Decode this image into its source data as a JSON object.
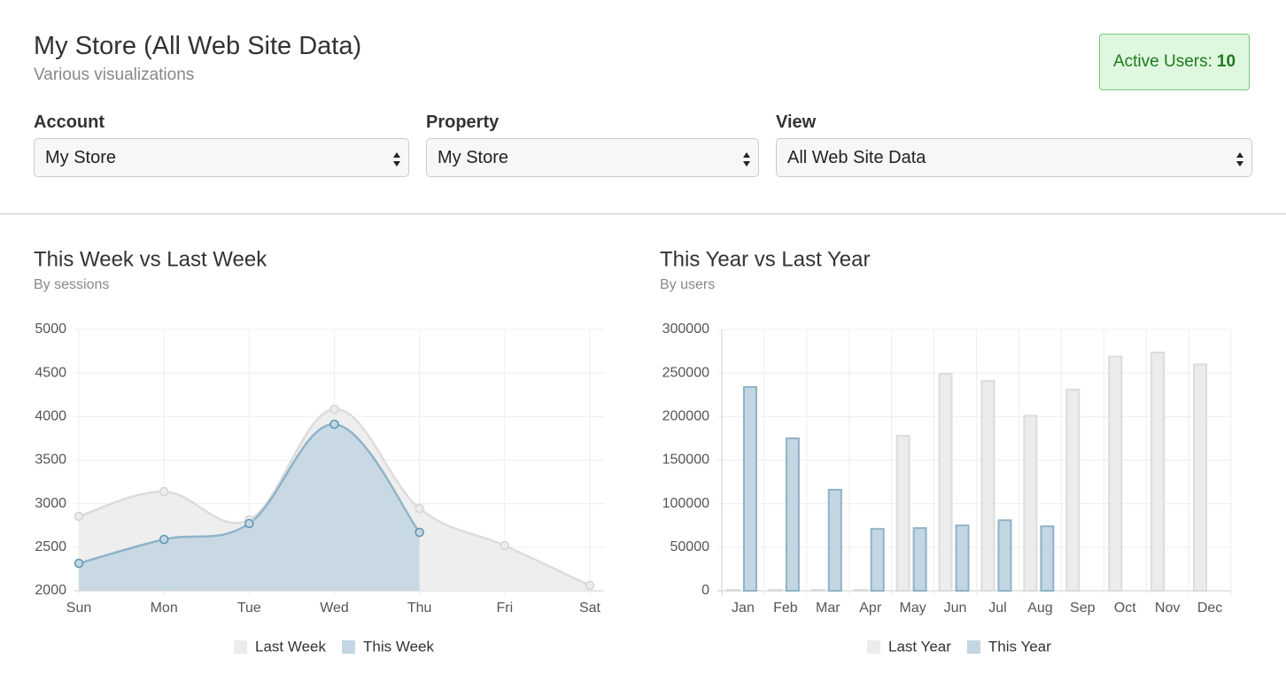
{
  "header": {
    "title": "My Store (All Web Site Data)",
    "subtitle": "Various visualizations",
    "active_users": {
      "label": "Active Users:",
      "value": 10
    }
  },
  "selectors": [
    {
      "label": "Account",
      "value": "My Store"
    },
    {
      "label": "Property",
      "value": "My Store"
    },
    {
      "label": "View",
      "value": "All Web Site Data"
    }
  ],
  "chart_data": [
    {
      "type": "line",
      "title": "This Week vs Last Week",
      "subtitle": "By sessions",
      "categories": [
        "Sun",
        "Mon",
        "Tue",
        "Wed",
        "Thu",
        "Fri",
        "Sat"
      ],
      "series": [
        {
          "name": "Last Week",
          "color": "#ececec",
          "border_color": "#dcdcdc",
          "values": [
            2854,
            3139,
            2814,
            4085,
            2946,
            2519,
            2061
          ]
        },
        {
          "name": "This Week",
          "color": "#c3d6e1",
          "border_color": "#8fb3c8",
          "values": [
            2315,
            2590,
            2773,
            3912,
            2671,
            null,
            null
          ]
        }
      ],
      "ylim": [
        2000,
        5000
      ],
      "yticks": [
        2000,
        2500,
        3000,
        3500,
        4000,
        4500,
        5000
      ],
      "grid": true,
      "legend": "bottom"
    },
    {
      "type": "bar",
      "title": "This Year vs Last Year",
      "subtitle": "By users",
      "categories": [
        "Jan",
        "Feb",
        "Mar",
        "Apr",
        "May",
        "Jun",
        "Jul",
        "Aug",
        "Sep",
        "Oct",
        "Nov",
        "Dec"
      ],
      "series": [
        {
          "name": "Last Year",
          "color": "#ececec",
          "border_color": "#dcdcdc",
          "values": [
            1000,
            1000,
            1000,
            1000,
            178000,
            249000,
            241000,
            201000,
            231000,
            269000,
            273600,
            260000
          ]
        },
        {
          "name": "This Year",
          "color": "#c3d6e1",
          "border_color": "#8fb3c8",
          "values": [
            234000,
            175000,
            116000,
            71000,
            72000,
            75000,
            81000,
            74000,
            null,
            null,
            null,
            null
          ]
        }
      ],
      "ylim": [
        0,
        300000
      ],
      "yticks": [
        0,
        50000,
        100000,
        150000,
        200000,
        250000,
        300000
      ],
      "grid": true,
      "legend": "bottom"
    }
  ]
}
